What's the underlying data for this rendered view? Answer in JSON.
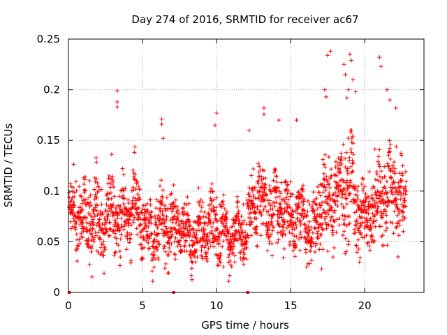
{
  "chart_data": {
    "type": "scatter",
    "title": "Day 274 of 2016, SRMTID for receiver ac67",
    "xlabel": "GPS time / hours",
    "ylabel": "SRMTID / TECUs",
    "xlim": [
      0,
      24
    ],
    "ylim": [
      0,
      0.25
    ],
    "xticks": [
      0,
      5,
      10,
      15,
      20
    ],
    "xtick_labels": [
      "0",
      "5",
      "10",
      "15",
      "20"
    ],
    "yticks": [
      0,
      0.05,
      0.1,
      0.15,
      0.2,
      0.25
    ],
    "ytick_labels": [
      "0",
      "0.05",
      "0.1",
      "0.15",
      "0.2",
      "0.25"
    ],
    "grid": true,
    "marker": "+",
    "color": "#ff0000",
    "point_count": 2200,
    "series": [
      {
        "name": "SRMTID",
        "x": [
          0.0,
          0.5,
          1.0,
          1.5,
          2.0,
          2.5,
          3.0,
          3.5,
          4.0,
          4.5,
          5.0,
          5.5,
          6.0,
          6.5,
          7.0,
          7.5,
          8.0,
          8.5,
          9.0,
          9.5,
          10.0,
          10.5,
          11.0,
          11.5,
          12.0,
          12.5,
          13.0,
          13.5,
          14.0,
          14.5,
          15.0,
          15.5,
          16.0,
          16.5,
          17.0,
          17.5,
          18.0,
          18.5,
          19.0,
          19.5,
          20.0,
          20.5,
          21.0,
          21.5,
          22.0,
          22.5,
          23.0
        ],
        "center": [
          0.08,
          0.075,
          0.07,
          0.072,
          0.08,
          0.065,
          0.085,
          0.07,
          0.075,
          0.09,
          0.065,
          0.06,
          0.075,
          0.065,
          0.06,
          0.07,
          0.055,
          0.055,
          0.06,
          0.065,
          0.065,
          0.06,
          0.055,
          0.055,
          0.06,
          0.085,
          0.1,
          0.075,
          0.085,
          0.08,
          0.075,
          0.075,
          0.07,
          0.06,
          0.08,
          0.085,
          0.09,
          0.1,
          0.11,
          0.08,
          0.07,
          0.08,
          0.095,
          0.1,
          0.1,
          0.09,
          0.08
        ],
        "spread": [
          0.03,
          0.035,
          0.035,
          0.04,
          0.045,
          0.035,
          0.05,
          0.04,
          0.035,
          0.045,
          0.035,
          0.03,
          0.045,
          0.035,
          0.035,
          0.03,
          0.03,
          0.03,
          0.03,
          0.035,
          0.04,
          0.035,
          0.03,
          0.03,
          0.03,
          0.045,
          0.045,
          0.04,
          0.04,
          0.04,
          0.04,
          0.035,
          0.035,
          0.035,
          0.05,
          0.05,
          0.05,
          0.06,
          0.06,
          0.045,
          0.04,
          0.045,
          0.05,
          0.05,
          0.05,
          0.04,
          0.035
        ]
      }
    ],
    "spikes": [
      {
        "x": 3.3,
        "y": 0.199
      },
      {
        "x": 3.3,
        "y": 0.188
      },
      {
        "x": 3.3,
        "y": 0.183
      },
      {
        "x": 6.3,
        "y": 0.171
      },
      {
        "x": 6.3,
        "y": 0.166
      },
      {
        "x": 6.4,
        "y": 0.152
      },
      {
        "x": 10.0,
        "y": 0.177
      },
      {
        "x": 9.9,
        "y": 0.165
      },
      {
        "x": 12.2,
        "y": 0.16
      },
      {
        "x": 13.2,
        "y": 0.182
      },
      {
        "x": 13.2,
        "y": 0.176
      },
      {
        "x": 14.2,
        "y": 0.17
      },
      {
        "x": 15.4,
        "y": 0.17
      },
      {
        "x": 17.3,
        "y": 0.2
      },
      {
        "x": 17.4,
        "y": 0.193
      },
      {
        "x": 17.5,
        "y": 0.234
      },
      {
        "x": 17.7,
        "y": 0.238
      },
      {
        "x": 18.8,
        "y": 0.192
      },
      {
        "x": 18.9,
        "y": 0.2
      },
      {
        "x": 18.6,
        "y": 0.225
      },
      {
        "x": 18.7,
        "y": 0.215
      },
      {
        "x": 19.0,
        "y": 0.235
      },
      {
        "x": 19.1,
        "y": 0.229
      },
      {
        "x": 19.2,
        "y": 0.21
      },
      {
        "x": 19.4,
        "y": 0.198
      },
      {
        "x": 21.0,
        "y": 0.232
      },
      {
        "x": 21.1,
        "y": 0.223
      },
      {
        "x": 21.5,
        "y": 0.2
      },
      {
        "x": 21.7,
        "y": 0.19
      },
      {
        "x": 22.1,
        "y": 0.182
      }
    ],
    "zero_points": [
      {
        "x": 0.05,
        "y": 0
      },
      {
        "x": 7.1,
        "y": 0
      },
      {
        "x": 12.1,
        "y": 0
      }
    ]
  }
}
